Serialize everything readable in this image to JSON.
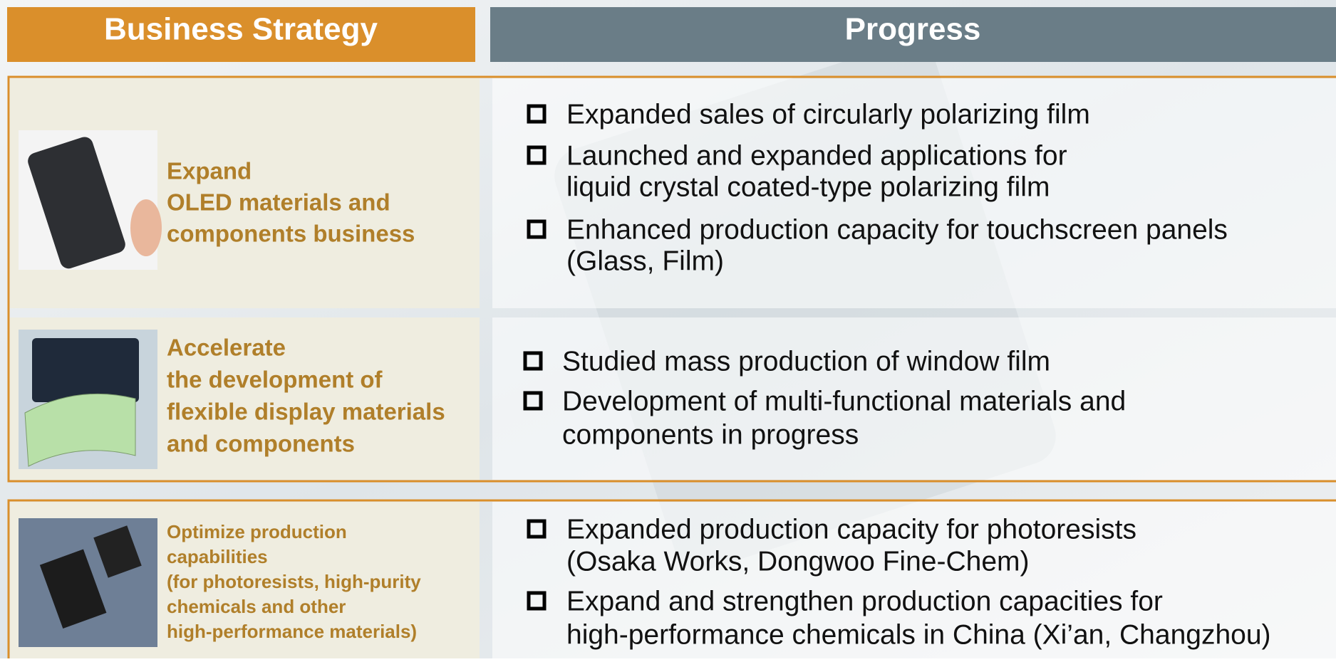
{
  "header": {
    "strategy": "Business Strategy",
    "progress": "Progress"
  },
  "rows": [
    {
      "strategy": [
        "Expand",
        "OLED materials and",
        "components business"
      ],
      "progress": [
        [
          "Expanded sales of circularly polarizing film"
        ],
        [
          "Launched and expanded applications for",
          "liquid crystal coated-type polarizing film"
        ],
        [
          "Enhanced production capacity for touchscreen panels",
          "(Glass, Film)"
        ]
      ]
    },
    {
      "strategy": [
        "Accelerate",
        "the development of",
        "flexible display materials",
        "and components"
      ],
      "progress": [
        [
          "Studied mass production of window film"
        ],
        [
          "Development of multi-functional materials and",
          "components in progress"
        ]
      ]
    },
    {
      "strategy": [
        "Optimize production",
        "capabilities",
        "(for photoresists, high-purity",
        "chemicals and other",
        "high-performance materials)"
      ],
      "progress": [
        [
          "Expanded production capacity for photoresists",
          "(Osaka Works, Dongwoo Fine-Chem)"
        ],
        [
          "Expand and strengthen production capacities for",
          "high-performance chemicals in China (Xi’an, Changzhou)"
        ]
      ]
    }
  ]
}
